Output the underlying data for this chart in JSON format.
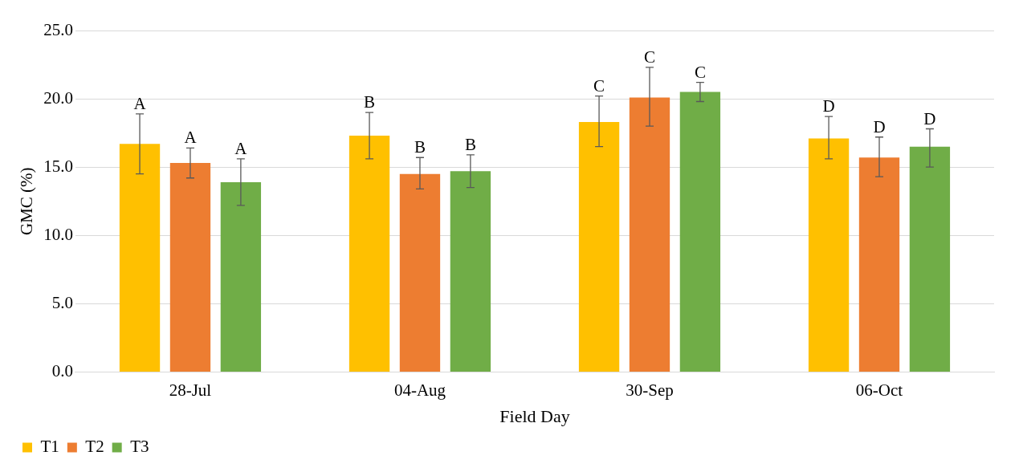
{
  "chart_data": {
    "type": "bar",
    "xlabel": "Field Day",
    "ylabel": "GMC (%)",
    "categories": [
      "28-Jul",
      "04-Aug",
      "30-Sep",
      "06-Oct"
    ],
    "series": [
      {
        "name": "T1",
        "color": "#ffc000",
        "values": [
          16.7,
          17.3,
          18.3,
          17.1
        ],
        "errors": [
          [
            14.5,
            18.9
          ],
          [
            15.6,
            19.0
          ],
          [
            16.5,
            20.2
          ],
          [
            15.6,
            18.7
          ]
        ],
        "value_labels": [
          "A",
          "B",
          "C",
          "D"
        ]
      },
      {
        "name": "T2",
        "color": "#ed7d31",
        "values": [
          15.3,
          14.5,
          20.1,
          15.7
        ],
        "errors": [
          [
            14.2,
            16.4
          ],
          [
            13.4,
            15.7
          ],
          [
            18.0,
            22.3
          ],
          [
            14.3,
            17.2
          ]
        ],
        "value_labels": [
          "A",
          "B",
          "C",
          "D"
        ]
      },
      {
        "name": "T3",
        "color": "#70ad47",
        "values": [
          13.9,
          14.7,
          20.5,
          16.5
        ],
        "errors": [
          [
            12.2,
            15.6
          ],
          [
            13.5,
            15.9
          ],
          [
            19.8,
            21.2
          ],
          [
            15.0,
            17.8
          ]
        ],
        "value_labels": [
          "A",
          "B",
          "C",
          "D"
        ]
      }
    ],
    "ylim": [
      0,
      25
    ],
    "yticks": [
      {
        "value": 0,
        "label": "0.0"
      },
      {
        "value": 5,
        "label": "5.0"
      },
      {
        "value": 10,
        "label": "10.0"
      },
      {
        "value": 15,
        "label": "15.0"
      },
      {
        "value": 20,
        "label": "20.0"
      },
      {
        "value": 25,
        "label": "25.0"
      }
    ],
    "grid": "y",
    "legend": "bottom left"
  }
}
